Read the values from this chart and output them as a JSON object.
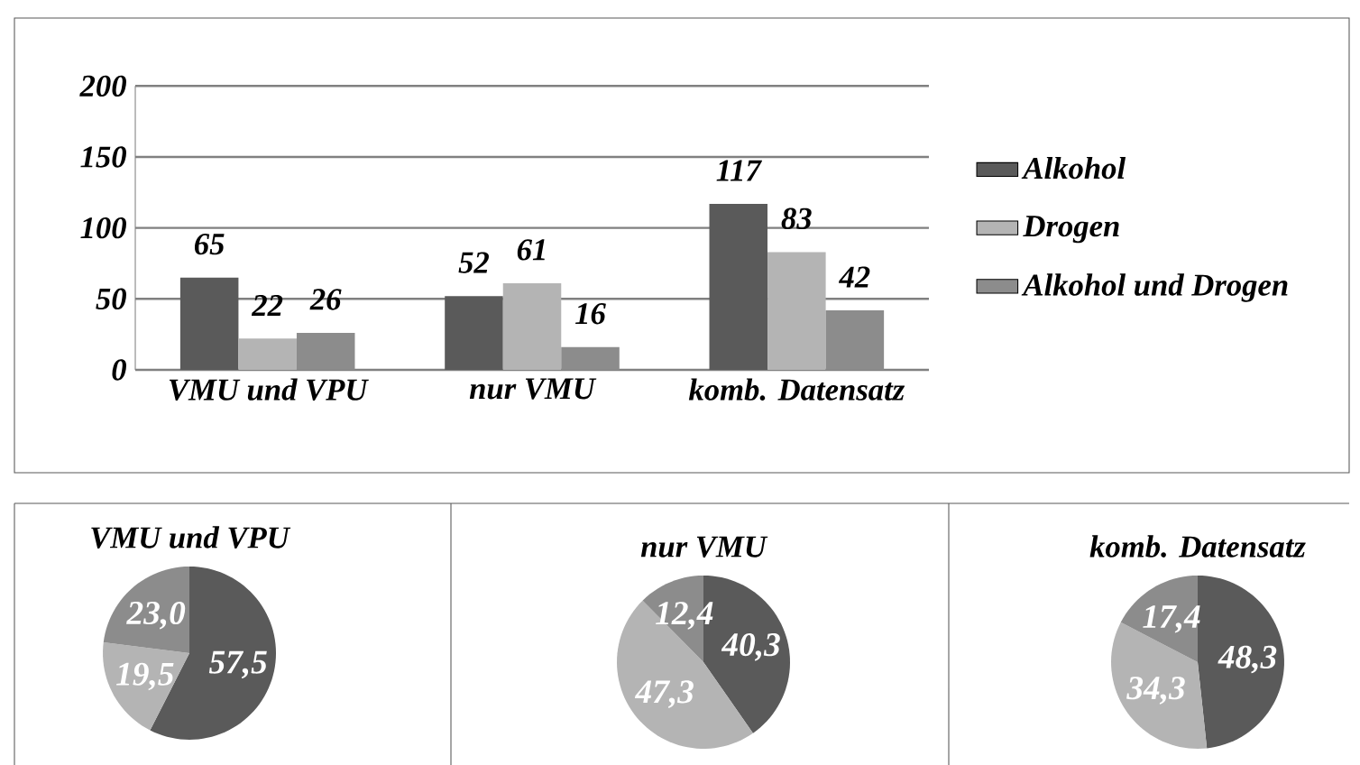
{
  "chart_data": [
    {
      "type": "bar",
      "categories": [
        "VMU und VPU",
        "nur VMU",
        "komb. Datensatz"
      ],
      "series": [
        {
          "name": "Alkohol",
          "color": "#5a5a5a",
          "values": [
            65,
            52,
            117
          ]
        },
        {
          "name": "Drogen",
          "color": "#b4b4b4",
          "values": [
            22,
            61,
            83
          ]
        },
        {
          "name": "Alkohol und Drogen",
          "color": "#8c8c8c",
          "values": [
            26,
            16,
            42
          ]
        }
      ],
      "ylim": [
        0,
        200
      ],
      "yticks": [
        0,
        50,
        100,
        150,
        200
      ],
      "grid": "y",
      "legend": "right",
      "data_labels": true
    },
    {
      "type": "pie",
      "title": "VMU und VPU",
      "categories": [
        null,
        null,
        null
      ],
      "values": [
        57.5,
        19.5,
        23.0
      ],
      "colors": [
        "#5a5a5a",
        "#b4b4b4",
        "#8c8c8c"
      ],
      "value_labels": [
        "57,5",
        "19,5",
        "23,0"
      ]
    },
    {
      "type": "pie",
      "title": "nur VMU",
      "categories": [
        null,
        null,
        null
      ],
      "values": [
        40.3,
        47.3,
        12.4
      ],
      "colors": [
        "#5a5a5a",
        "#b4b4b4",
        "#8c8c8c"
      ],
      "value_labels": [
        "40,3",
        "47,3",
        "12,4"
      ]
    },
    {
      "type": "pie",
      "title": "komb. Datensatz",
      "categories": [
        null,
        null,
        null
      ],
      "values": [
        48.3,
        34.3,
        17.4
      ],
      "colors": [
        "#5a5a5a",
        "#b4b4b4",
        "#8c8c8c"
      ],
      "value_labels": [
        "48,3",
        "34,3",
        "17,4"
      ]
    }
  ]
}
